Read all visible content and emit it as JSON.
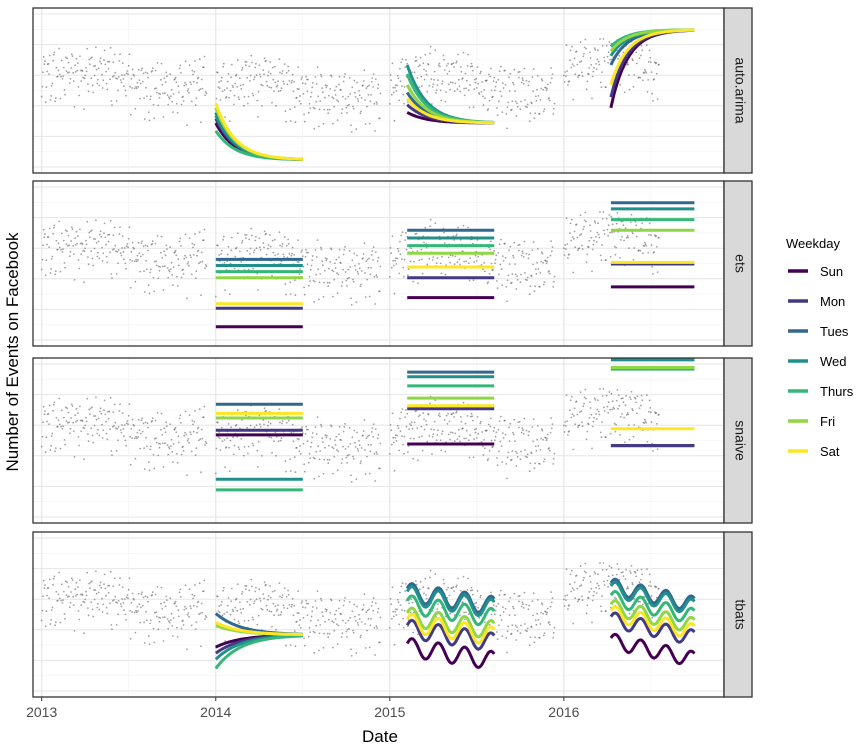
{
  "chart_data": {
    "type": "line",
    "title": "",
    "xlabel": "Date",
    "ylabel": "Number of Events on Facebook",
    "x_ticks": [
      "2013",
      "2014",
      "2015",
      "2016"
    ],
    "xlim": [
      2012.95,
      2016.92
    ],
    "ylim": [
      0,
      100
    ],
    "y_tick_labels_visible": false,
    "grid": true,
    "legend": {
      "title": "Weekday",
      "position": "right",
      "entries": [
        {
          "name": "Sun",
          "color": "#440154"
        },
        {
          "name": "Mon",
          "color": "#443A83"
        },
        {
          "name": "Tues",
          "color": "#31688E"
        },
        {
          "name": "Wed",
          "color": "#21908C"
        },
        {
          "name": "Thurs",
          "color": "#35B779"
        },
        {
          "name": "Fri",
          "color": "#8FD744"
        },
        {
          "name": "Sat",
          "color": "#FDE725"
        }
      ]
    },
    "observed_points": {
      "description": "grey scatter of observed daily counts, same in every panel",
      "color": "#555555",
      "segments": [
        {
          "x_range": [
            2013.0,
            2013.95
          ],
          "level": 58
        },
        {
          "x_range": [
            2014.0,
            2014.95
          ],
          "level": 52
        },
        {
          "x_range": [
            2015.0,
            2015.95
          ],
          "level": 55
        },
        {
          "x_range": [
            2016.0,
            2016.55
          ],
          "level": 66
        }
      ]
    },
    "forecast_windows": [
      {
        "start": 2014.0,
        "end": 2014.5
      },
      {
        "start": 2015.1,
        "end": 2015.6
      },
      {
        "start": 2016.27,
        "end": 2016.75
      }
    ],
    "panels": [
      {
        "name": "auto.arima",
        "forecasts": [
          {
            "window": 0,
            "kind": "decay",
            "target": 6,
            "start": {
              "Sun": 30,
              "Mon": 33,
              "Tues": 37,
              "Wed": 35,
              "Thurs": 25,
              "Fri": 40,
              "Sat": 43
            }
          },
          {
            "window": 1,
            "kind": "decay",
            "target": 30,
            "start": {
              "Sun": 37,
              "Mon": 42,
              "Tues": 50,
              "Wed": 68,
              "Thurs": 62,
              "Fri": 55,
              "Sat": 46
            }
          },
          {
            "window": 2,
            "kind": "rise",
            "target": 91,
            "start": {
              "Sun": 40,
              "Mon": 47,
              "Tues": 68,
              "Wed": 74,
              "Thurs": 80,
              "Fri": 77,
              "Sat": 55
            }
          }
        ]
      },
      {
        "name": "ets",
        "forecasts": [
          {
            "window": 0,
            "kind": "flat",
            "values": {
              "Sun": 10,
              "Mon": 22,
              "Tues": 54,
              "Wed": 50,
              "Thurs": 46,
              "Fri": 42,
              "Sat": 25
            }
          },
          {
            "window": 1,
            "kind": "flat",
            "values": {
              "Sun": 29,
              "Mon": 42,
              "Tues": 73,
              "Wed": 68,
              "Thurs": 63,
              "Fri": 58,
              "Sat": 49
            }
          },
          {
            "window": 2,
            "kind": "flat",
            "values": {
              "Sun": 36,
              "Mon": 51,
              "Tues": 91,
              "Wed": 87,
              "Thurs": 80,
              "Fri": 73,
              "Sat": 52
            }
          }
        ]
      },
      {
        "name": "snaive",
        "forecasts": [
          {
            "window": 0,
            "kind": "flat",
            "values": {
              "Sun": 55,
              "Mon": 58,
              "Tues": 75,
              "Wed": 26,
              "Thurs": 19,
              "Fri": 66,
              "Sat": 69
            }
          },
          {
            "window": 1,
            "kind": "flat",
            "values": {
              "Sun": 49,
              "Mon": 72,
              "Tues": 96,
              "Wed": 93,
              "Thurs": 87,
              "Fri": 79,
              "Sat": 74
            }
          },
          {
            "window": 2,
            "kind": "flat",
            "values": {
              "Sun": 48,
              "Mon": 48,
              "Tues": 99,
              "Wed": 104,
              "Thurs": 98,
              "Fri": 99,
              "Sat": 59
            }
          }
        ]
      },
      {
        "name": "tbats",
        "forecasts": [
          {
            "window": 0,
            "kind": "converge",
            "target": 38,
            "start": {
              "Sun": 30,
              "Mon": 26,
              "Tues": 52,
              "Wed": 22,
              "Thurs": 16,
              "Fri": 44,
              "Sat": 46
            }
          },
          {
            "window": 1,
            "kind": "wave",
            "base": {
              "Sun": 30,
              "Mon": 42,
              "Tues": 66,
              "Wed": 64,
              "Thurs": 58,
              "Fri": 50,
              "Sat": 46
            },
            "amplitude": 6,
            "decline": 9
          },
          {
            "window": 2,
            "kind": "wave",
            "base": {
              "Sun": 34,
              "Mon": 48,
              "Tues": 70,
              "Wed": 68,
              "Thurs": 62,
              "Fri": 56,
              "Sat": 52
            },
            "amplitude": 5,
            "decline": 12
          }
        ]
      }
    ]
  }
}
